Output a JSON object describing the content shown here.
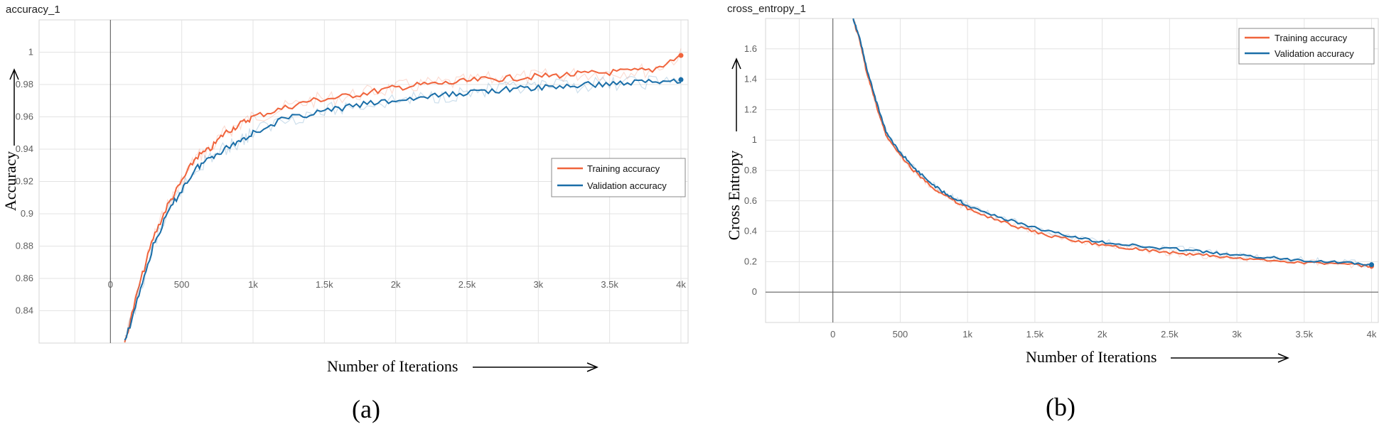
{
  "colors": {
    "training": "#f0643c",
    "validation": "#1a6ea8"
  },
  "chart_data": [
    {
      "type": "line",
      "panel_title": "accuracy_1",
      "caption": "(a)",
      "xlabel": "Number of Iterations",
      "ylabel": "Accuracy",
      "xlim": [
        -500,
        4050
      ],
      "ylim": [
        0.82,
        1.02
      ],
      "x_ticks": [
        0,
        500,
        1000,
        1500,
        2000,
        2500,
        3000,
        3500,
        4000
      ],
      "x_tick_labels": [
        "0",
        "500",
        "1k",
        "1.5k",
        "2k",
        "2.5k",
        "3k",
        "3.5k",
        "4k"
      ],
      "y_ticks": [
        0.84,
        0.86,
        0.88,
        0.9,
        0.92,
        0.94,
        0.96,
        0.98,
        1.0
      ],
      "y_tick_labels": [
        "0.84",
        "0.86",
        "0.88",
        "0.9",
        "0.92",
        "0.94",
        "0.96",
        "0.98",
        "1"
      ],
      "grid": true,
      "legend_position": "middle-right",
      "series": [
        {
          "name": "Training accuracy",
          "color": "#f0643c",
          "x": [
            100,
            200,
            300,
            400,
            500,
            600,
            700,
            800,
            900,
            1000,
            1200,
            1400,
            1600,
            1800,
            2000,
            2200,
            2400,
            2600,
            2800,
            3000,
            3200,
            3400,
            3600,
            3800,
            4000
          ],
          "y": [
            0.82,
            0.855,
            0.885,
            0.905,
            0.92,
            0.935,
            0.94,
            0.95,
            0.955,
            0.96,
            0.965,
            0.97,
            0.972,
            0.975,
            0.978,
            0.98,
            0.981,
            0.983,
            0.984,
            0.985,
            0.986,
            0.987,
            0.988,
            0.989,
            0.998
          ]
        },
        {
          "name": "Validation accuracy",
          "color": "#1a6ea8",
          "x": [
            100,
            200,
            300,
            400,
            500,
            600,
            700,
            800,
            900,
            1000,
            1200,
            1400,
            1600,
            1800,
            2000,
            2200,
            2400,
            2600,
            2800,
            3000,
            3200,
            3400,
            3600,
            3800,
            4000
          ],
          "y": [
            0.82,
            0.85,
            0.88,
            0.9,
            0.915,
            0.928,
            0.935,
            0.94,
            0.945,
            0.95,
            0.958,
            0.962,
            0.965,
            0.968,
            0.97,
            0.972,
            0.974,
            0.976,
            0.977,
            0.978,
            0.979,
            0.98,
            0.981,
            0.982,
            0.983
          ]
        }
      ]
    },
    {
      "type": "line",
      "panel_title": "cross_entropy_1",
      "caption": "(b)",
      "xlabel": "Number of Iterations",
      "ylabel": "Cross Entropy",
      "xlim": [
        -500,
        4050
      ],
      "ylim": [
        -0.2,
        1.8
      ],
      "x_ticks": [
        0,
        500,
        1000,
        1500,
        2000,
        2500,
        3000,
        3500,
        4000
      ],
      "x_tick_labels": [
        "0",
        "500",
        "1k",
        "1.5k",
        "2k",
        "2.5k",
        "3k",
        "3.5k",
        "4k"
      ],
      "y_ticks": [
        0,
        0.2,
        0.4,
        0.6,
        0.8,
        1.0,
        1.2,
        1.4,
        1.6
      ],
      "y_tick_labels": [
        "0",
        "0.2",
        "0.4",
        "0.6",
        "0.8",
        "1",
        "1.2",
        "1.4",
        "1.6"
      ],
      "grid": true,
      "legend_position": "top-right",
      "series": [
        {
          "name": "Training accuracy",
          "color": "#f0643c",
          "x": [
            150,
            200,
            250,
            300,
            350,
            400,
            500,
            600,
            700,
            800,
            900,
            1000,
            1200,
            1400,
            1600,
            1800,
            2000,
            2200,
            2400,
            2600,
            2800,
            3000,
            3200,
            3400,
            3600,
            3800,
            4000
          ],
          "y": [
            1.8,
            1.65,
            1.45,
            1.3,
            1.15,
            1.02,
            0.9,
            0.8,
            0.72,
            0.65,
            0.6,
            0.55,
            0.48,
            0.42,
            0.37,
            0.34,
            0.31,
            0.29,
            0.27,
            0.25,
            0.24,
            0.22,
            0.21,
            0.2,
            0.19,
            0.185,
            0.17
          ]
        },
        {
          "name": "Validation accuracy",
          "color": "#1a6ea8",
          "x": [
            150,
            200,
            250,
            300,
            350,
            400,
            500,
            600,
            700,
            800,
            900,
            1000,
            1200,
            1400,
            1600,
            1800,
            2000,
            2200,
            2400,
            2600,
            2800,
            3000,
            3200,
            3400,
            3600,
            3800,
            4000
          ],
          "y": [
            1.8,
            1.67,
            1.47,
            1.32,
            1.17,
            1.04,
            0.92,
            0.82,
            0.74,
            0.67,
            0.62,
            0.57,
            0.5,
            0.45,
            0.4,
            0.36,
            0.33,
            0.31,
            0.29,
            0.28,
            0.26,
            0.24,
            0.23,
            0.215,
            0.205,
            0.195,
            0.18
          ]
        }
      ]
    }
  ]
}
